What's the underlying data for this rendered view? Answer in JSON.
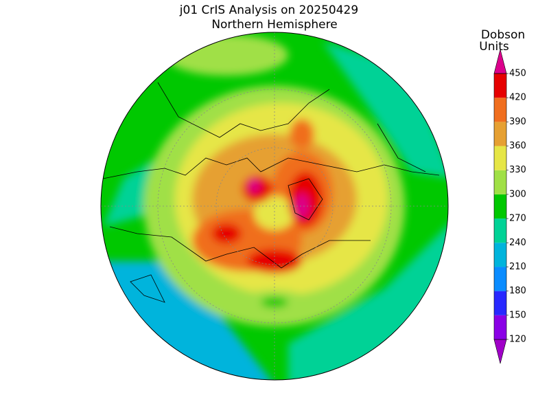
{
  "header": {
    "title": "j01 CrIS Analysis on 20250429",
    "subtitle": "Northern Hemisphere"
  },
  "colorbar": {
    "label": [
      "Dobson",
      "Units"
    ],
    "ticks": [
      120,
      150,
      180,
      210,
      240,
      270,
      300,
      330,
      360,
      390,
      420,
      450
    ],
    "colors": [
      "#a000c8",
      "#8a00e6",
      "#2828ff",
      "#0a8cff",
      "#00b4dc",
      "#00d296",
      "#00c800",
      "#a0e046",
      "#e6e646",
      "#e6a032",
      "#f06e1e",
      "#e60000",
      "#dc008c"
    ]
  }
}
